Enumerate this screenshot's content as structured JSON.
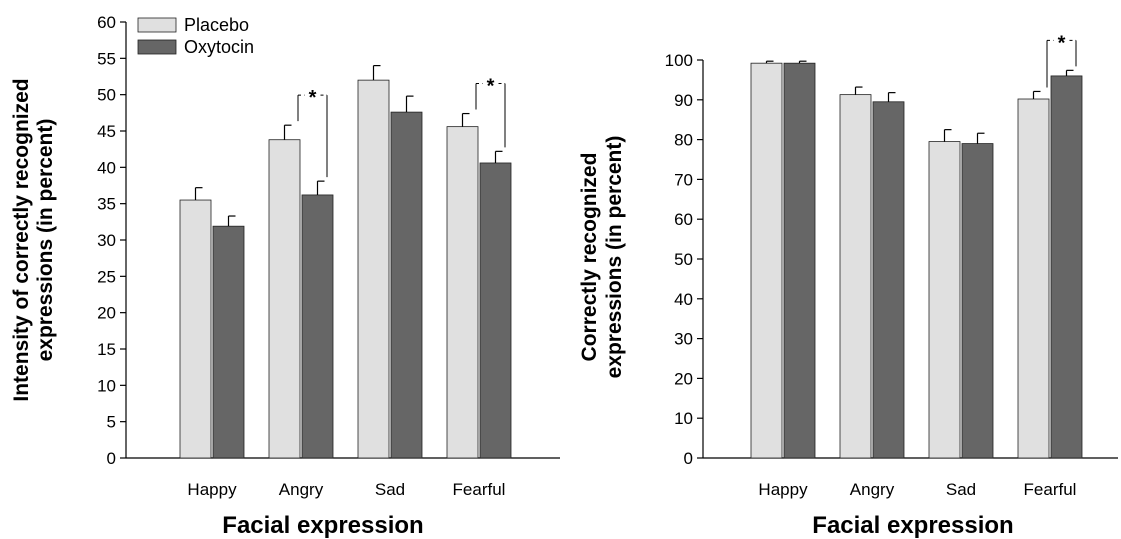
{
  "chart_data": [
    {
      "type": "bar",
      "categories": [
        "Happy",
        "Angry",
        "Sad",
        "Fearful"
      ],
      "series": [
        {
          "name": "Placebo",
          "values": [
            35.5,
            43.8,
            52.0,
            45.6
          ],
          "errors": [
            1.7,
            2.0,
            2.0,
            1.8
          ],
          "color": "#e0e0e0"
        },
        {
          "name": "Oxytocin",
          "values": [
            31.9,
            36.2,
            47.6,
            40.6
          ],
          "errors": [
            1.4,
            1.9,
            2.2,
            1.6
          ],
          "color": "#666666"
        }
      ],
      "xlabel": "Facial expression",
      "ylabel_line1": "Intensity of correctly  recognized",
      "ylabel_line2": "expressions (in percent)",
      "ylim": [
        0,
        60
      ],
      "yticks": [
        "0",
        "5",
        "10",
        "15",
        "20",
        "25",
        "30",
        "35",
        "40",
        "45",
        "50",
        "55",
        "60"
      ],
      "significance": [
        {
          "category": "Angry",
          "label": "*"
        },
        {
          "category": "Fearful",
          "label": "*"
        }
      ],
      "legend": {
        "position": "top-left",
        "entries": [
          "Placebo",
          "Oxytocin"
        ]
      }
    },
    {
      "type": "bar",
      "categories": [
        "Happy",
        "Angry",
        "Sad",
        "Fearful"
      ],
      "series": [
        {
          "name": "Placebo",
          "values": [
            99.2,
            91.3,
            79.5,
            90.2
          ],
          "errors": [
            0.5,
            1.9,
            3.0,
            1.9
          ],
          "color": "#e0e0e0"
        },
        {
          "name": "Oxytocin",
          "values": [
            99.2,
            89.5,
            79.0,
            96.0
          ],
          "errors": [
            0.5,
            2.3,
            2.6,
            1.4
          ],
          "color": "#666666"
        }
      ],
      "xlabel": "Facial expression",
      "ylabel_line1": "Correctly recognized",
      "ylabel_line2": "expressions (in percent)",
      "ylim": [
        0,
        100
      ],
      "yticks": [
        "0",
        "10",
        "20",
        "30",
        "40",
        "50",
        "60",
        "70",
        "80",
        "90",
        "100"
      ],
      "significance": [
        {
          "category": "Fearful",
          "label": "*"
        }
      ]
    }
  ]
}
